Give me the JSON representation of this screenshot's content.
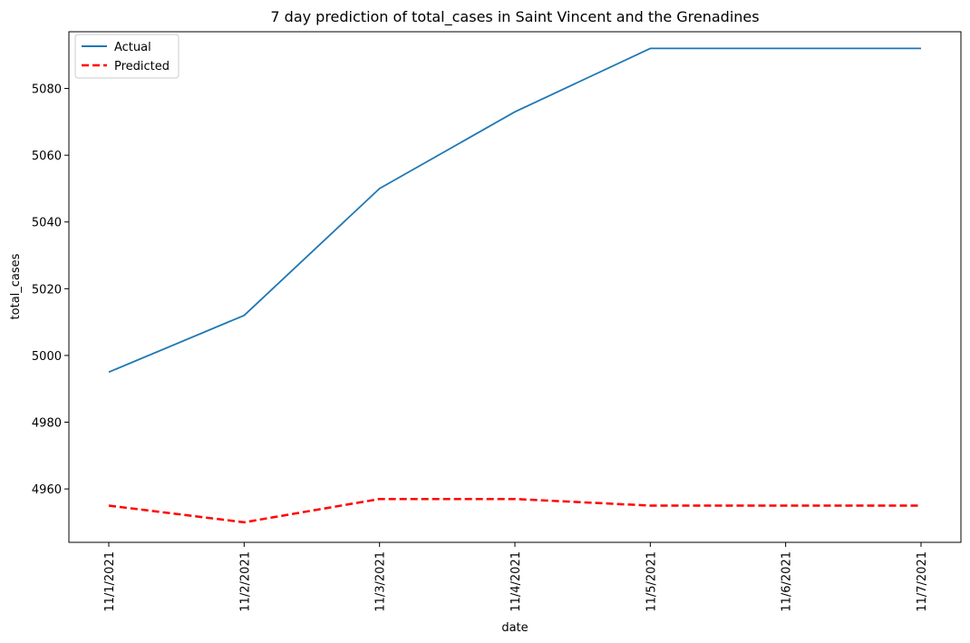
{
  "chart_data": {
    "type": "line",
    "title": "7 day prediction of total_cases in Saint Vincent and the Grenadines",
    "xlabel": "date",
    "ylabel": "total_cases",
    "categories": [
      "11/1/2021",
      "11/2/2021",
      "11/3/2021",
      "11/4/2021",
      "11/5/2021",
      "11/6/2021",
      "11/7/2021"
    ],
    "ylim": [
      4944,
      5097
    ],
    "yticks": [
      4960,
      4980,
      5000,
      5020,
      5040,
      5060,
      5080
    ],
    "grid": false,
    "legend_position": "top-left",
    "series": [
      {
        "name": "Actual",
        "values": [
          4995,
          5012,
          5050,
          5073,
          5092,
          5092,
          5092
        ],
        "color": "#1f77b4",
        "style": "solid"
      },
      {
        "name": "Predicted",
        "values": [
          4955,
          4950,
          4957,
          4957,
          4955,
          4955,
          4955
        ],
        "color": "#ff0000",
        "style": "dashed"
      }
    ]
  }
}
